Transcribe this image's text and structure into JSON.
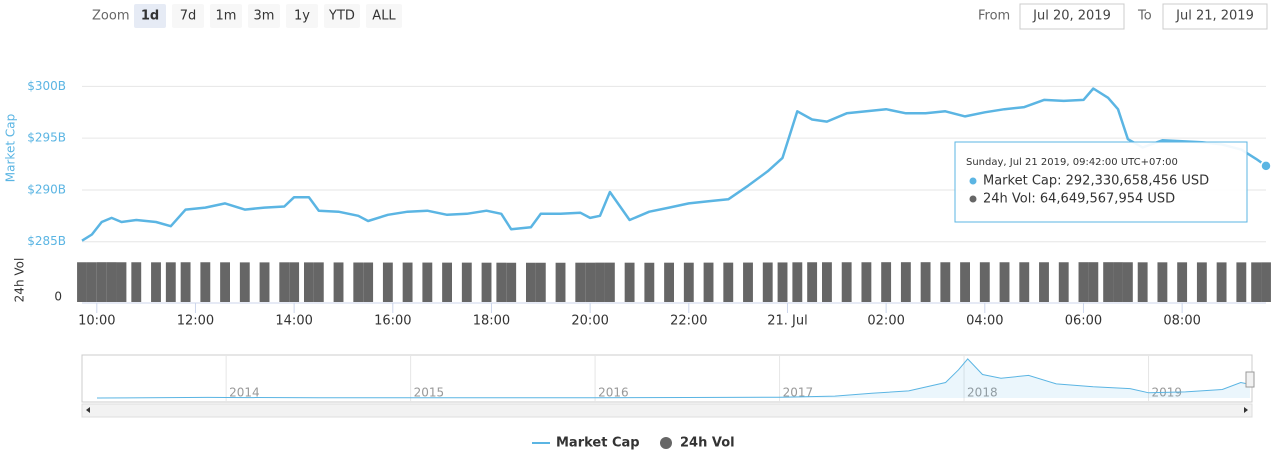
{
  "range_selector": {
    "zoom_label": "Zoom",
    "buttons": [
      "1d",
      "7d",
      "1m",
      "3m",
      "1y",
      "YTD",
      "ALL"
    ],
    "active_button": 0,
    "from_label": "From",
    "from": "Jul 20, 2019",
    "to_label": "To",
    "to": "Jul 21, 2019"
  },
  "tooltip": {
    "header": "Sunday, Jul 21 2019, 09:42:00 UTC+07:00",
    "lines": [
      "Market Cap: 292,330,658,456 USD",
      "24h Vol: 64,649,567,954 USD"
    ]
  },
  "chart_data": [
    {
      "type": "line",
      "ylabel": "Market Cap",
      "y2label": "24h Vol",
      "x": [
        9.7,
        9.9,
        10.1,
        10.3,
        10.5,
        10.8,
        11.2,
        11.5,
        11.8,
        12.2,
        12.6,
        13.0,
        13.4,
        13.8,
        14.0,
        14.3,
        14.5,
        14.9,
        15.3,
        15.5,
        15.9,
        16.3,
        16.7,
        17.1,
        17.5,
        17.9,
        18.2,
        18.4,
        18.8,
        19.0,
        19.4,
        19.8,
        20.0,
        20.2,
        20.4,
        20.8,
        21.2,
        21.6,
        22.0,
        22.4,
        22.8,
        23.2,
        23.6,
        23.9,
        24.2,
        24.5,
        24.8,
        25.2,
        25.6,
        26.0,
        26.4,
        26.8,
        27.2,
        27.6,
        28.0,
        28.4,
        28.8,
        29.2,
        29.6,
        30.0,
        30.2,
        30.5,
        30.7,
        30.9,
        31.2,
        31.6,
        32.0,
        32.4,
        32.8,
        33.2,
        33.5,
        33.7
      ],
      "series": [
        {
          "name": "Market Cap",
          "color": "#5bb5e3",
          "values": [
            285.1,
            285.7,
            286.9,
            287.3,
            286.9,
            287.1,
            286.9,
            286.5,
            288.1,
            288.3,
            288.7,
            288.1,
            288.3,
            288.4,
            289.3,
            289.3,
            288.0,
            287.9,
            287.5,
            287.0,
            287.6,
            287.9,
            288.0,
            287.6,
            287.7,
            288.0,
            287.7,
            286.2,
            286.4,
            287.7,
            287.7,
            287.8,
            287.3,
            287.5,
            289.8,
            287.1,
            287.9,
            288.3,
            288.7,
            288.9,
            289.1,
            290.4,
            291.8,
            293.1,
            297.6,
            296.8,
            296.6,
            297.4,
            297.6,
            297.8,
            297.4,
            297.4,
            297.6,
            297.1,
            297.5,
            297.8,
            298.0,
            298.7,
            298.6,
            298.7,
            299.8,
            298.9,
            297.8,
            294.9,
            294.1,
            294.8,
            294.7,
            294.6,
            294.4,
            293.9,
            293.0,
            292.33
          ]
        },
        {
          "name": "24h Vol",
          "color": "#666666",
          "axis": "y2",
          "values": [
            64.8,
            64.8,
            64.9,
            64.9,
            64.8,
            64.8,
            64.7,
            64.7,
            64.8,
            64.8,
            64.7,
            64.6,
            64.6,
            64.7,
            64.7,
            64.6,
            64.6,
            64.5,
            64.4,
            64.4,
            64.3,
            64.3,
            64.3,
            64.2,
            64.2,
            64.1,
            64.1,
            64.0,
            64.0,
            64.0,
            64.0,
            64.1,
            64.1,
            64.2,
            64.2,
            64.1,
            64.0,
            64.1,
            64.1,
            64.2,
            64.2,
            64.3,
            64.4,
            64.5,
            64.7,
            64.8,
            64.8,
            64.8,
            64.8,
            64.9,
            64.9,
            64.9,
            64.8,
            64.8,
            64.8,
            64.8,
            64.8,
            64.8,
            64.8,
            64.9,
            64.9,
            64.9,
            64.9,
            64.8,
            64.7,
            64.7,
            64.7,
            64.6,
            64.6,
            64.6,
            64.6,
            64.65
          ]
        }
      ],
      "xlim": [
        9.7,
        33.7
      ],
      "xticks": [
        {
          "value": 10,
          "label": "10:00"
        },
        {
          "value": 12,
          "label": "12:00"
        },
        {
          "value": 14,
          "label": "14:00"
        },
        {
          "value": 16,
          "label": "16:00"
        },
        {
          "value": 18,
          "label": "18:00"
        },
        {
          "value": 20,
          "label": "20:00"
        },
        {
          "value": 22,
          "label": "22:00"
        },
        {
          "value": 24,
          "label": "21. Jul"
        },
        {
          "value": 26,
          "label": "02:00"
        },
        {
          "value": 28,
          "label": "04:00"
        },
        {
          "value": 30,
          "label": "06:00"
        },
        {
          "value": 32,
          "label": "08:00"
        }
      ],
      "ylim": [
        284.2,
        304
      ],
      "yticks": [
        {
          "value": 285,
          "label": "$285B"
        },
        {
          "value": 290,
          "label": "$290B"
        },
        {
          "value": 295,
          "label": "$295B"
        },
        {
          "value": 300,
          "label": "$300B"
        }
      ],
      "y2lim": [
        0,
        75
      ],
      "y2ticks": [
        0
      ],
      "grid": true
    },
    {
      "type": "area",
      "color": "#5bb5e3",
      "x": [
        2013.3,
        2013.9,
        2014.0,
        2014.5,
        2015.0,
        2015.5,
        2016.0,
        2016.5,
        2017.0,
        2017.3,
        2017.5,
        2017.7,
        2017.9,
        2017.97,
        2018.02,
        2018.1,
        2018.2,
        2018.35,
        2018.5,
        2018.7,
        2018.9,
        2019.0,
        2019.2,
        2019.4,
        2019.5,
        2019.55
      ],
      "values": [
        1,
        12,
        10,
        7,
        4,
        4,
        6,
        10,
        18,
        40,
        100,
        150,
        330,
        600,
        830,
        500,
        420,
        480,
        300,
        240,
        200,
        110,
        130,
        180,
        330,
        290
      ],
      "xlim": [
        2013.3,
        2019.55
      ],
      "xticks": [
        2014,
        2015,
        2016,
        2017,
        2018,
        2019
      ],
      "ylim": [
        0,
        850
      ]
    }
  ]
}
